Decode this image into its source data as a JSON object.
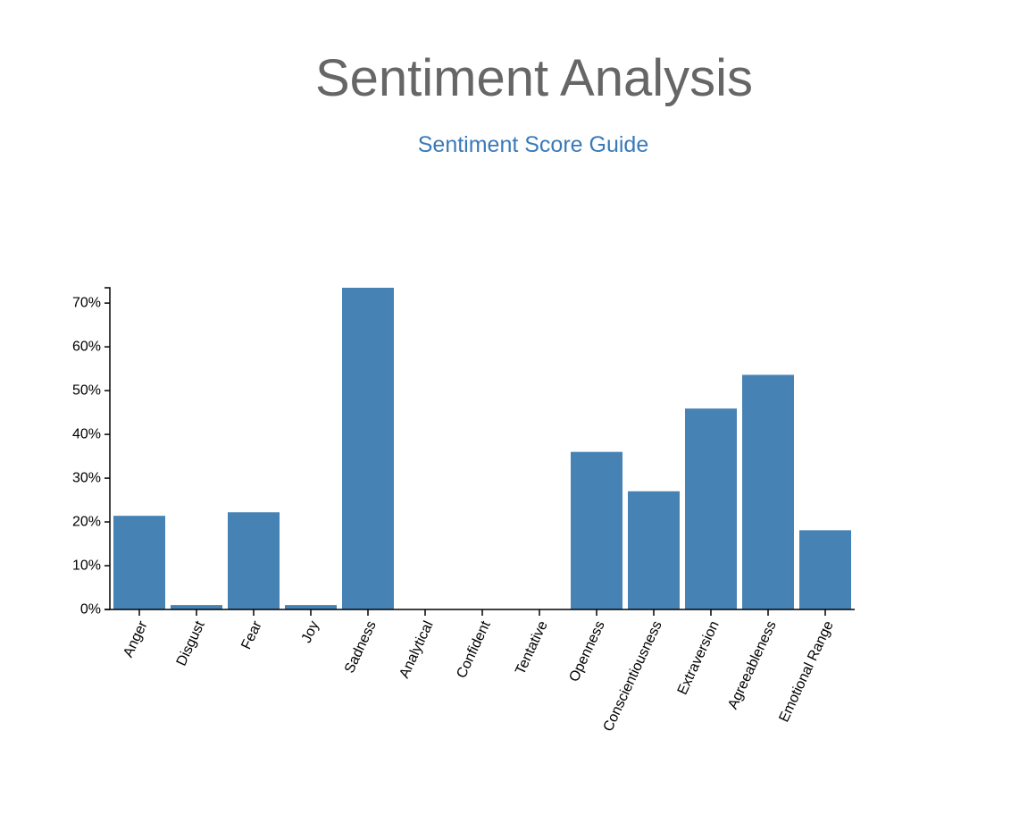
{
  "header": {
    "title": "Sentiment Analysis",
    "guide_link": "Sentiment Score Guide"
  },
  "colors": {
    "bar": "#4682b4",
    "title": "#666666",
    "link": "#3a7ab8"
  },
  "chart_data": {
    "type": "bar",
    "categories": [
      "Anger",
      "Disgust",
      "Fear",
      "Joy",
      "Sadness",
      "Analytical",
      "Confident",
      "Tentative",
      "Openness",
      "Conscientiousness",
      "Extraversion",
      "Agreeableness",
      "Emotional Range"
    ],
    "values": [
      21.4,
      1.0,
      22.2,
      1.0,
      73.5,
      0,
      0,
      0,
      36.0,
      27.0,
      45.9,
      53.6,
      18.1
    ],
    "y_ticks": [
      "0%",
      "10%",
      "20%",
      "30%",
      "40%",
      "50%",
      "60%",
      "70%"
    ],
    "ylim": [
      0,
      73.5
    ],
    "xlabel": "",
    "ylabel": "",
    "grid": false,
    "legend": "none"
  }
}
